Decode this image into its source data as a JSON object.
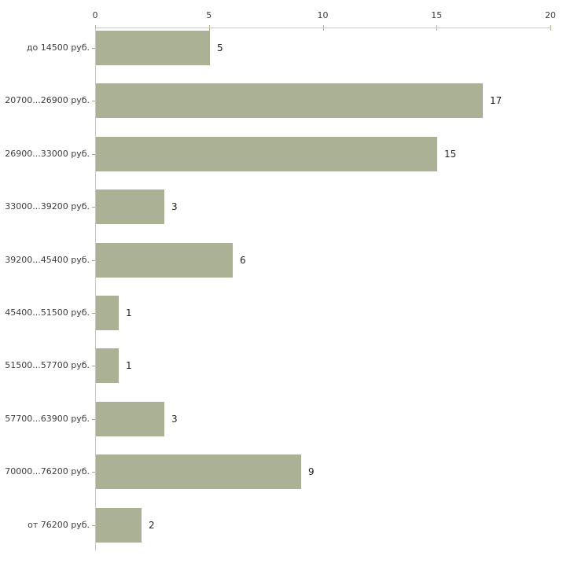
{
  "chart_data": {
    "type": "bar",
    "orientation": "horizontal",
    "title": "",
    "xlabel": "",
    "ylabel": "",
    "categories": [
      "до 14500 руб.",
      "20700...26900 руб.",
      "26900...33000 руб.",
      "33000...39200 руб.",
      "39200...45400 руб.",
      "45400...51500 руб.",
      "51500...57700 руб.",
      "57700...63900 руб.",
      "70000...76200 руб.",
      "от 76200 руб."
    ],
    "values": [
      5,
      17,
      15,
      3,
      6,
      1,
      1,
      3,
      9,
      2
    ],
    "value_labels_shown": true,
    "x_axis": {
      "position": "top",
      "ticks": [
        0,
        5,
        10,
        15,
        20
      ],
      "range": [
        0,
        20
      ],
      "grid": false
    },
    "legend": null,
    "colors": {
      "bar_fill": "#abb194",
      "axis_line": "#c6c6c6",
      "axis_tick": "#b5b58c",
      "category_tick": "#a9a98b",
      "text": "#3d3d3d",
      "value_text": "#222222",
      "background": "#ffffff"
    }
  }
}
